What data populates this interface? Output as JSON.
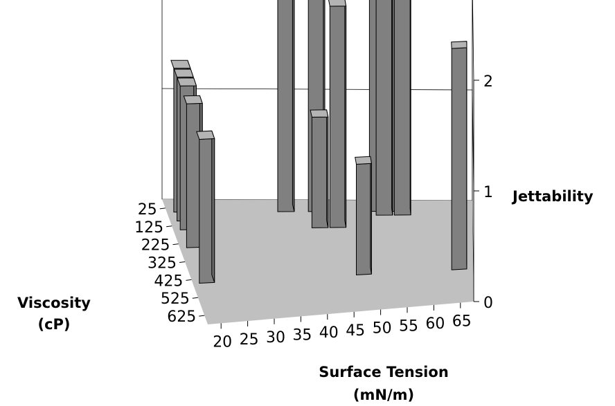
{
  "chart_data": {
    "type": "bar3d",
    "xlabel": "Surface Tension",
    "xlabel_unit": "(mN/m)",
    "ylabel": "Viscosity",
    "ylabel_unit": "(cP)",
    "zlabel": "Jettability",
    "x_ticks": [
      "20",
      "25",
      "30",
      "35",
      "40",
      "45",
      "50",
      "55",
      "60",
      "65"
    ],
    "y_ticks": [
      "25",
      "125",
      "225",
      "325",
      "425",
      "525",
      "625"
    ],
    "z_ticks": [
      "0",
      "1",
      "2"
    ],
    "zlim": [
      0,
      2
    ],
    "grid": true,
    "bar_color": "#808080",
    "floor_color": "#c0c0c0",
    "bars": [
      {
        "x": 20,
        "y": 25,
        "z": 1.3
      },
      {
        "x": 20,
        "y": 75,
        "z": 1.3
      },
      {
        "x": 20,
        "y": 125,
        "z": 1.3
      },
      {
        "x": 20,
        "y": 225,
        "z": 1.3
      },
      {
        "x": 20,
        "y": 425,
        "z": 1.3
      },
      {
        "x": 37,
        "y": 25,
        "z": 2.0
      },
      {
        "x": 42,
        "y": 25,
        "z": 2.0
      },
      {
        "x": 42,
        "y": 125,
        "z": 1.0
      },
      {
        "x": 45,
        "y": 125,
        "z": 2.0
      },
      {
        "x": 48,
        "y": 425,
        "z": 1.0
      },
      {
        "x": 52,
        "y": 25,
        "z": 2.0
      },
      {
        "x": 53,
        "y": 50,
        "z": 2.0
      },
      {
        "x": 55,
        "y": 25,
        "z": 2.0
      },
      {
        "x": 56,
        "y": 50,
        "z": 2.0
      },
      {
        "x": 65,
        "y": 425,
        "z": 2.0
      }
    ]
  }
}
